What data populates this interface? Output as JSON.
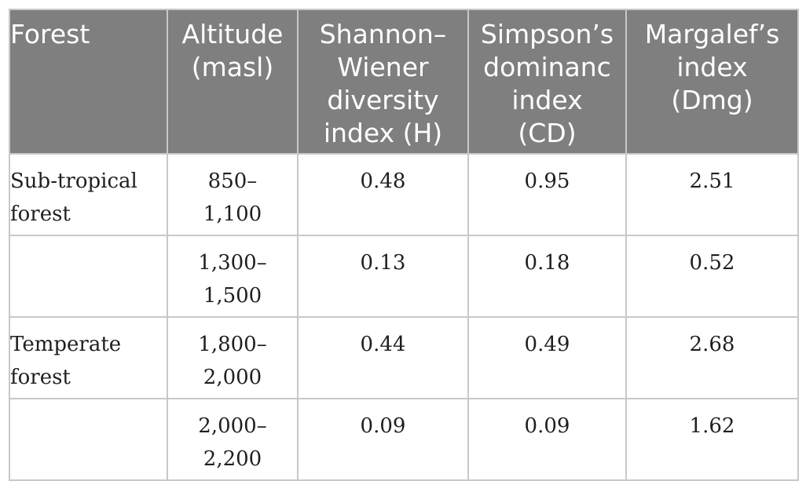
{
  "table": {
    "headers": [
      [
        "Forest"
      ],
      [
        "Altitude",
        "(masl)"
      ],
      [
        "Shannon–",
        "Wiener",
        "diversity",
        "index (H)"
      ],
      [
        "Simpson’s",
        "dominanc",
        "index",
        "(CD)"
      ],
      [
        "Margalef’s",
        "index",
        "(Dmg)"
      ]
    ],
    "rows": [
      {
        "forest": [
          "Sub-tropical",
          "forest"
        ],
        "altitude": [
          "850–",
          "1,100"
        ],
        "shannon": "0.48",
        "simpson": "0.95",
        "margalef": "2.51"
      },
      {
        "forest": [],
        "altitude": [
          "1,300–",
          "1,500"
        ],
        "shannon": "0.13",
        "simpson": "0.18",
        "margalef": "0.52"
      },
      {
        "forest": [
          "Temperate",
          "forest"
        ],
        "altitude": [
          "1,800–",
          "2,000"
        ],
        "shannon": "0.44",
        "simpson": "0.49",
        "margalef": "2.68"
      },
      {
        "forest": [],
        "altitude": [
          "2,000–",
          "2,200"
        ],
        "shannon": "0.09",
        "simpson": "0.09",
        "margalef": "1.62"
      }
    ]
  },
  "colors": {
    "header_bg": "#7f7f7f",
    "header_text": "#ffffff",
    "border": "#c8c8c8",
    "body_text": "#1f1f1f"
  }
}
